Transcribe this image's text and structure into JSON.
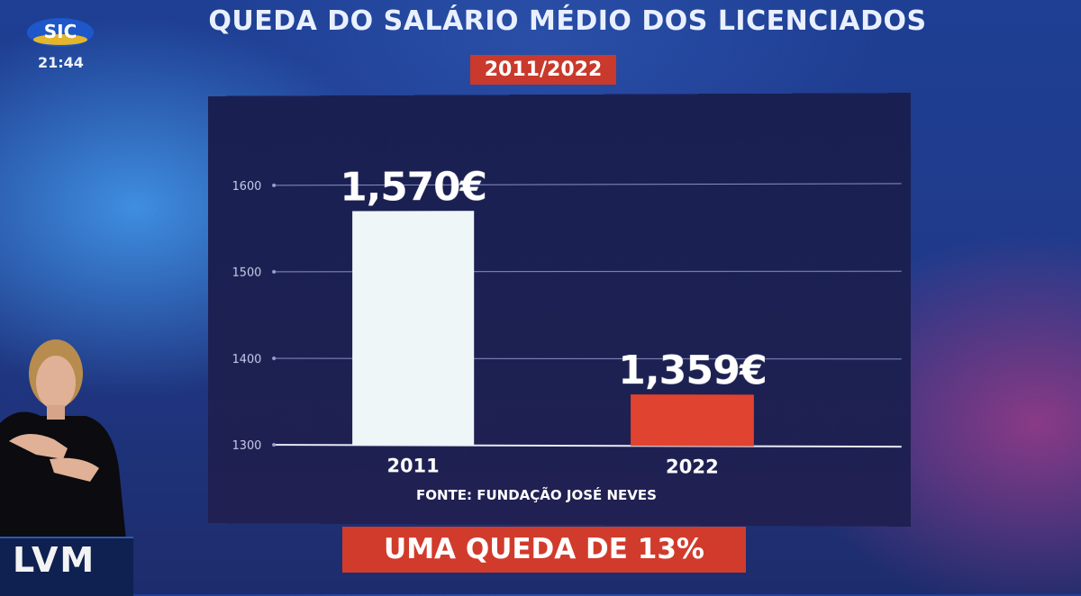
{
  "broadcast": {
    "channel_logo": "SIC",
    "clock": "21:44",
    "program_logo": "LVM"
  },
  "chart": {
    "title": "QUEDA DO SALÁRIO MÉDIO DOS LICENCIADOS",
    "period": "2011/2022",
    "source": "FONTE: FUNDAÇÃO JOSÉ NEVES",
    "headline": "UMA QUEDA DE 13%"
  },
  "chart_data": {
    "type": "bar",
    "categories": [
      "2011",
      "2022"
    ],
    "values": [
      1570,
      1359
    ],
    "value_labels": [
      "1,570€",
      "1,359€"
    ],
    "ylim": [
      1300,
      1600
    ],
    "yticks": [
      1300,
      1400,
      1500,
      1600
    ],
    "ytick_labels": [
      "1300",
      "1400",
      "1500",
      "1600"
    ],
    "bar_colors": [
      "#eef6f8",
      "#e0432f"
    ],
    "grid": true,
    "legend": "none"
  },
  "colors": {
    "accent_red": "#d13b2c",
    "panel": "#1b2052",
    "text": "#ffffff"
  }
}
